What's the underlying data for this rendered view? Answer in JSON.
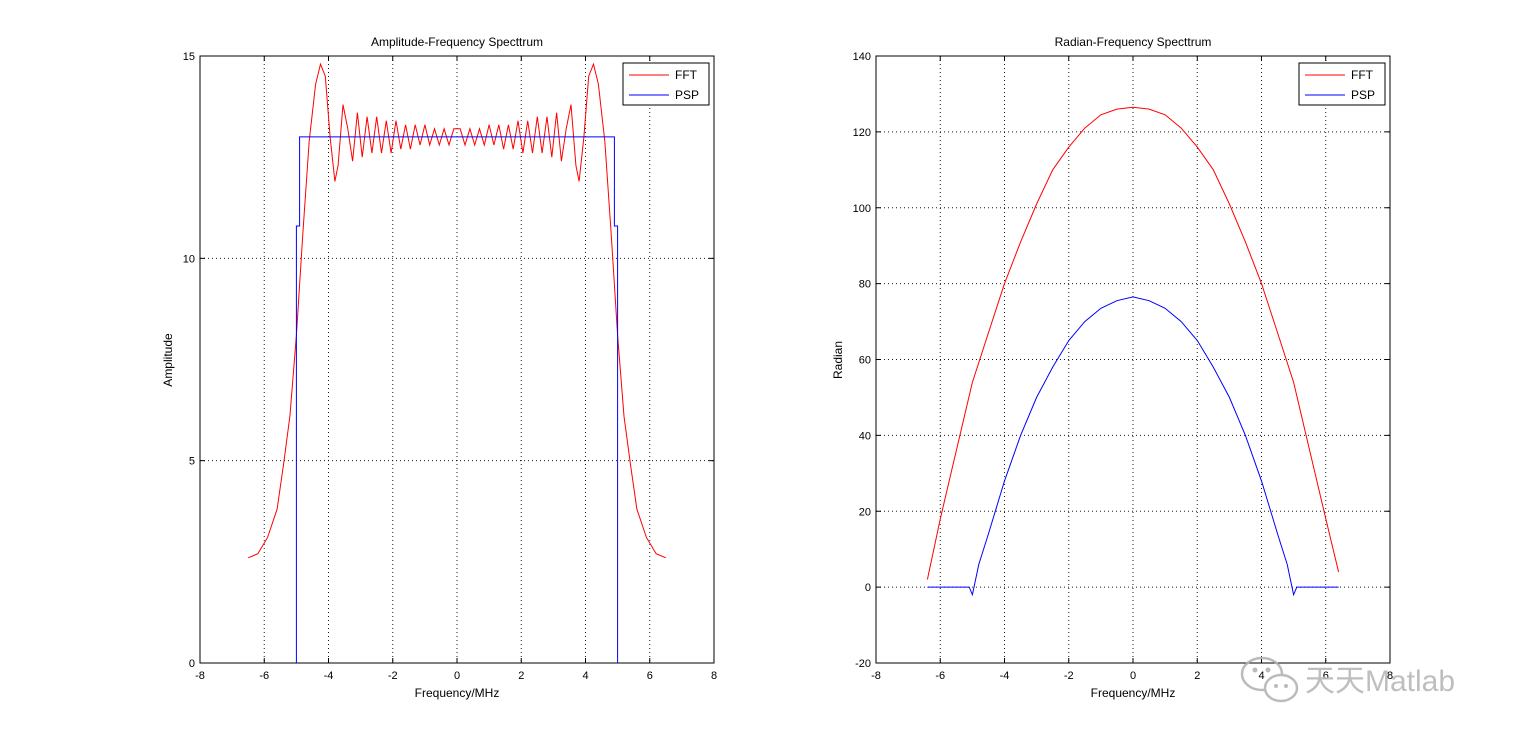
{
  "chart_data": [
    {
      "type": "line",
      "title": "Amplitude-Frequency Specttrum",
      "xlabel": "Frequency/MHz",
      "ylabel": "Amplitude",
      "xlim": [
        -8,
        8
      ],
      "ylim": [
        0,
        15
      ],
      "xticks": [
        -8,
        -6,
        -4,
        -2,
        0,
        2,
        4,
        6,
        8
      ],
      "yticks": [
        0,
        5,
        10,
        15
      ],
      "grid": true,
      "legend_position": "top-right",
      "series": [
        {
          "name": "FFT",
          "color": "#ff0000",
          "x": [
            -6.5,
            -6.2,
            -5.9,
            -5.6,
            -5.4,
            -5.2,
            -5.0,
            -4.8,
            -4.6,
            -4.4,
            -4.25,
            -4.1,
            -3.95,
            -3.8,
            -3.7,
            -3.55,
            -3.4,
            -3.25,
            -3.1,
            -2.95,
            -2.8,
            -2.65,
            -2.5,
            -2.35,
            -2.2,
            -2.05,
            -1.9,
            -1.75,
            -1.6,
            -1.45,
            -1.3,
            -1.15,
            -1.0,
            -0.85,
            -0.7,
            -0.55,
            -0.4,
            -0.25,
            -0.1,
            0.1,
            0.25,
            0.4,
            0.55,
            0.7,
            0.85,
            1.0,
            1.15,
            1.3,
            1.45,
            1.6,
            1.75,
            1.9,
            2.05,
            2.2,
            2.35,
            2.5,
            2.65,
            2.8,
            2.95,
            3.1,
            3.25,
            3.4,
            3.55,
            3.7,
            3.8,
            3.95,
            4.1,
            4.25,
            4.4,
            4.6,
            4.8,
            5.0,
            5.2,
            5.4,
            5.6,
            5.9,
            6.2,
            6.5
          ],
          "y": [
            2.6,
            2.7,
            3.1,
            3.8,
            4.9,
            6.1,
            8.1,
            10.6,
            12.9,
            14.3,
            14.8,
            14.5,
            13.0,
            11.9,
            12.3,
            13.8,
            13.2,
            12.4,
            13.6,
            12.5,
            13.5,
            12.6,
            13.5,
            12.6,
            13.4,
            12.6,
            13.4,
            12.7,
            13.3,
            12.7,
            13.3,
            12.8,
            13.3,
            12.8,
            13.2,
            12.8,
            13.2,
            12.8,
            13.2,
            13.2,
            12.8,
            13.2,
            12.8,
            13.2,
            12.8,
            13.3,
            12.8,
            13.3,
            12.7,
            13.3,
            12.7,
            13.4,
            12.6,
            13.4,
            12.6,
            13.5,
            12.6,
            13.5,
            12.5,
            13.6,
            12.4,
            13.2,
            13.8,
            12.3,
            11.9,
            13.0,
            14.5,
            14.8,
            14.3,
            12.9,
            10.6,
            8.1,
            6.1,
            4.9,
            3.8,
            3.1,
            2.7,
            2.6
          ]
        },
        {
          "name": "PSP",
          "color": "#0000ff",
          "x": [
            -5.0,
            -5.0,
            -5.0,
            -4.9,
            -4.9,
            4.9,
            4.9,
            5.0,
            5.0,
            5.0
          ],
          "y": [
            0,
            2.2,
            10.8,
            10.8,
            13.0,
            13.0,
            10.8,
            10.8,
            2.2,
            0
          ]
        }
      ]
    },
    {
      "type": "line",
      "title": "Radian-Frequency Specttrum",
      "xlabel": "Frequency/MHz",
      "ylabel": "Radian",
      "xlim": [
        -8,
        8
      ],
      "ylim": [
        -20,
        140
      ],
      "xticks": [
        -8,
        -6,
        -4,
        -2,
        0,
        2,
        4,
        6,
        8
      ],
      "yticks": [
        -20,
        0,
        20,
        40,
        60,
        80,
        100,
        120,
        140
      ],
      "grid": true,
      "legend_position": "top-right",
      "series": [
        {
          "name": "FFT",
          "color": "#ff0000",
          "x": [
            -6.4,
            -6.0,
            -5.5,
            -5.0,
            -4.5,
            -4.0,
            -3.5,
            -3.0,
            -2.5,
            -2.0,
            -1.5,
            -1.0,
            -0.5,
            0,
            0.5,
            1.0,
            1.5,
            2.0,
            2.5,
            3.0,
            3.5,
            4.0,
            4.5,
            5.0,
            5.5,
            6.0,
            6.4
          ],
          "y": [
            2,
            18,
            36,
            54,
            67,
            80,
            91,
            101,
            110,
            116,
            121,
            124.5,
            126,
            126.5,
            126,
            124.5,
            121,
            116,
            110,
            101,
            91,
            80,
            67,
            54,
            36,
            18,
            4
          ]
        },
        {
          "name": "PSP",
          "color": "#0000ff",
          "x": [
            -6.4,
            -5.5,
            -5.1,
            -5.0,
            -4.8,
            -4.5,
            -4.0,
            -3.5,
            -3.0,
            -2.5,
            -2.0,
            -1.5,
            -1.0,
            -0.5,
            0,
            0.5,
            1.0,
            1.5,
            2.0,
            2.5,
            3.0,
            3.5,
            4.0,
            4.5,
            4.8,
            5.0,
            5.1,
            5.5,
            6.4
          ],
          "y": [
            0,
            0,
            0,
            -2,
            6,
            14,
            28,
            40,
            50,
            58,
            65,
            70,
            73.5,
            75.5,
            76.5,
            75.5,
            73.5,
            70,
            65,
            58,
            50,
            40,
            28,
            14,
            6,
            -2,
            0,
            0,
            0
          ]
        }
      ]
    }
  ],
  "watermark": {
    "text": "天天Matlab",
    "icon": "wechat-icon"
  }
}
